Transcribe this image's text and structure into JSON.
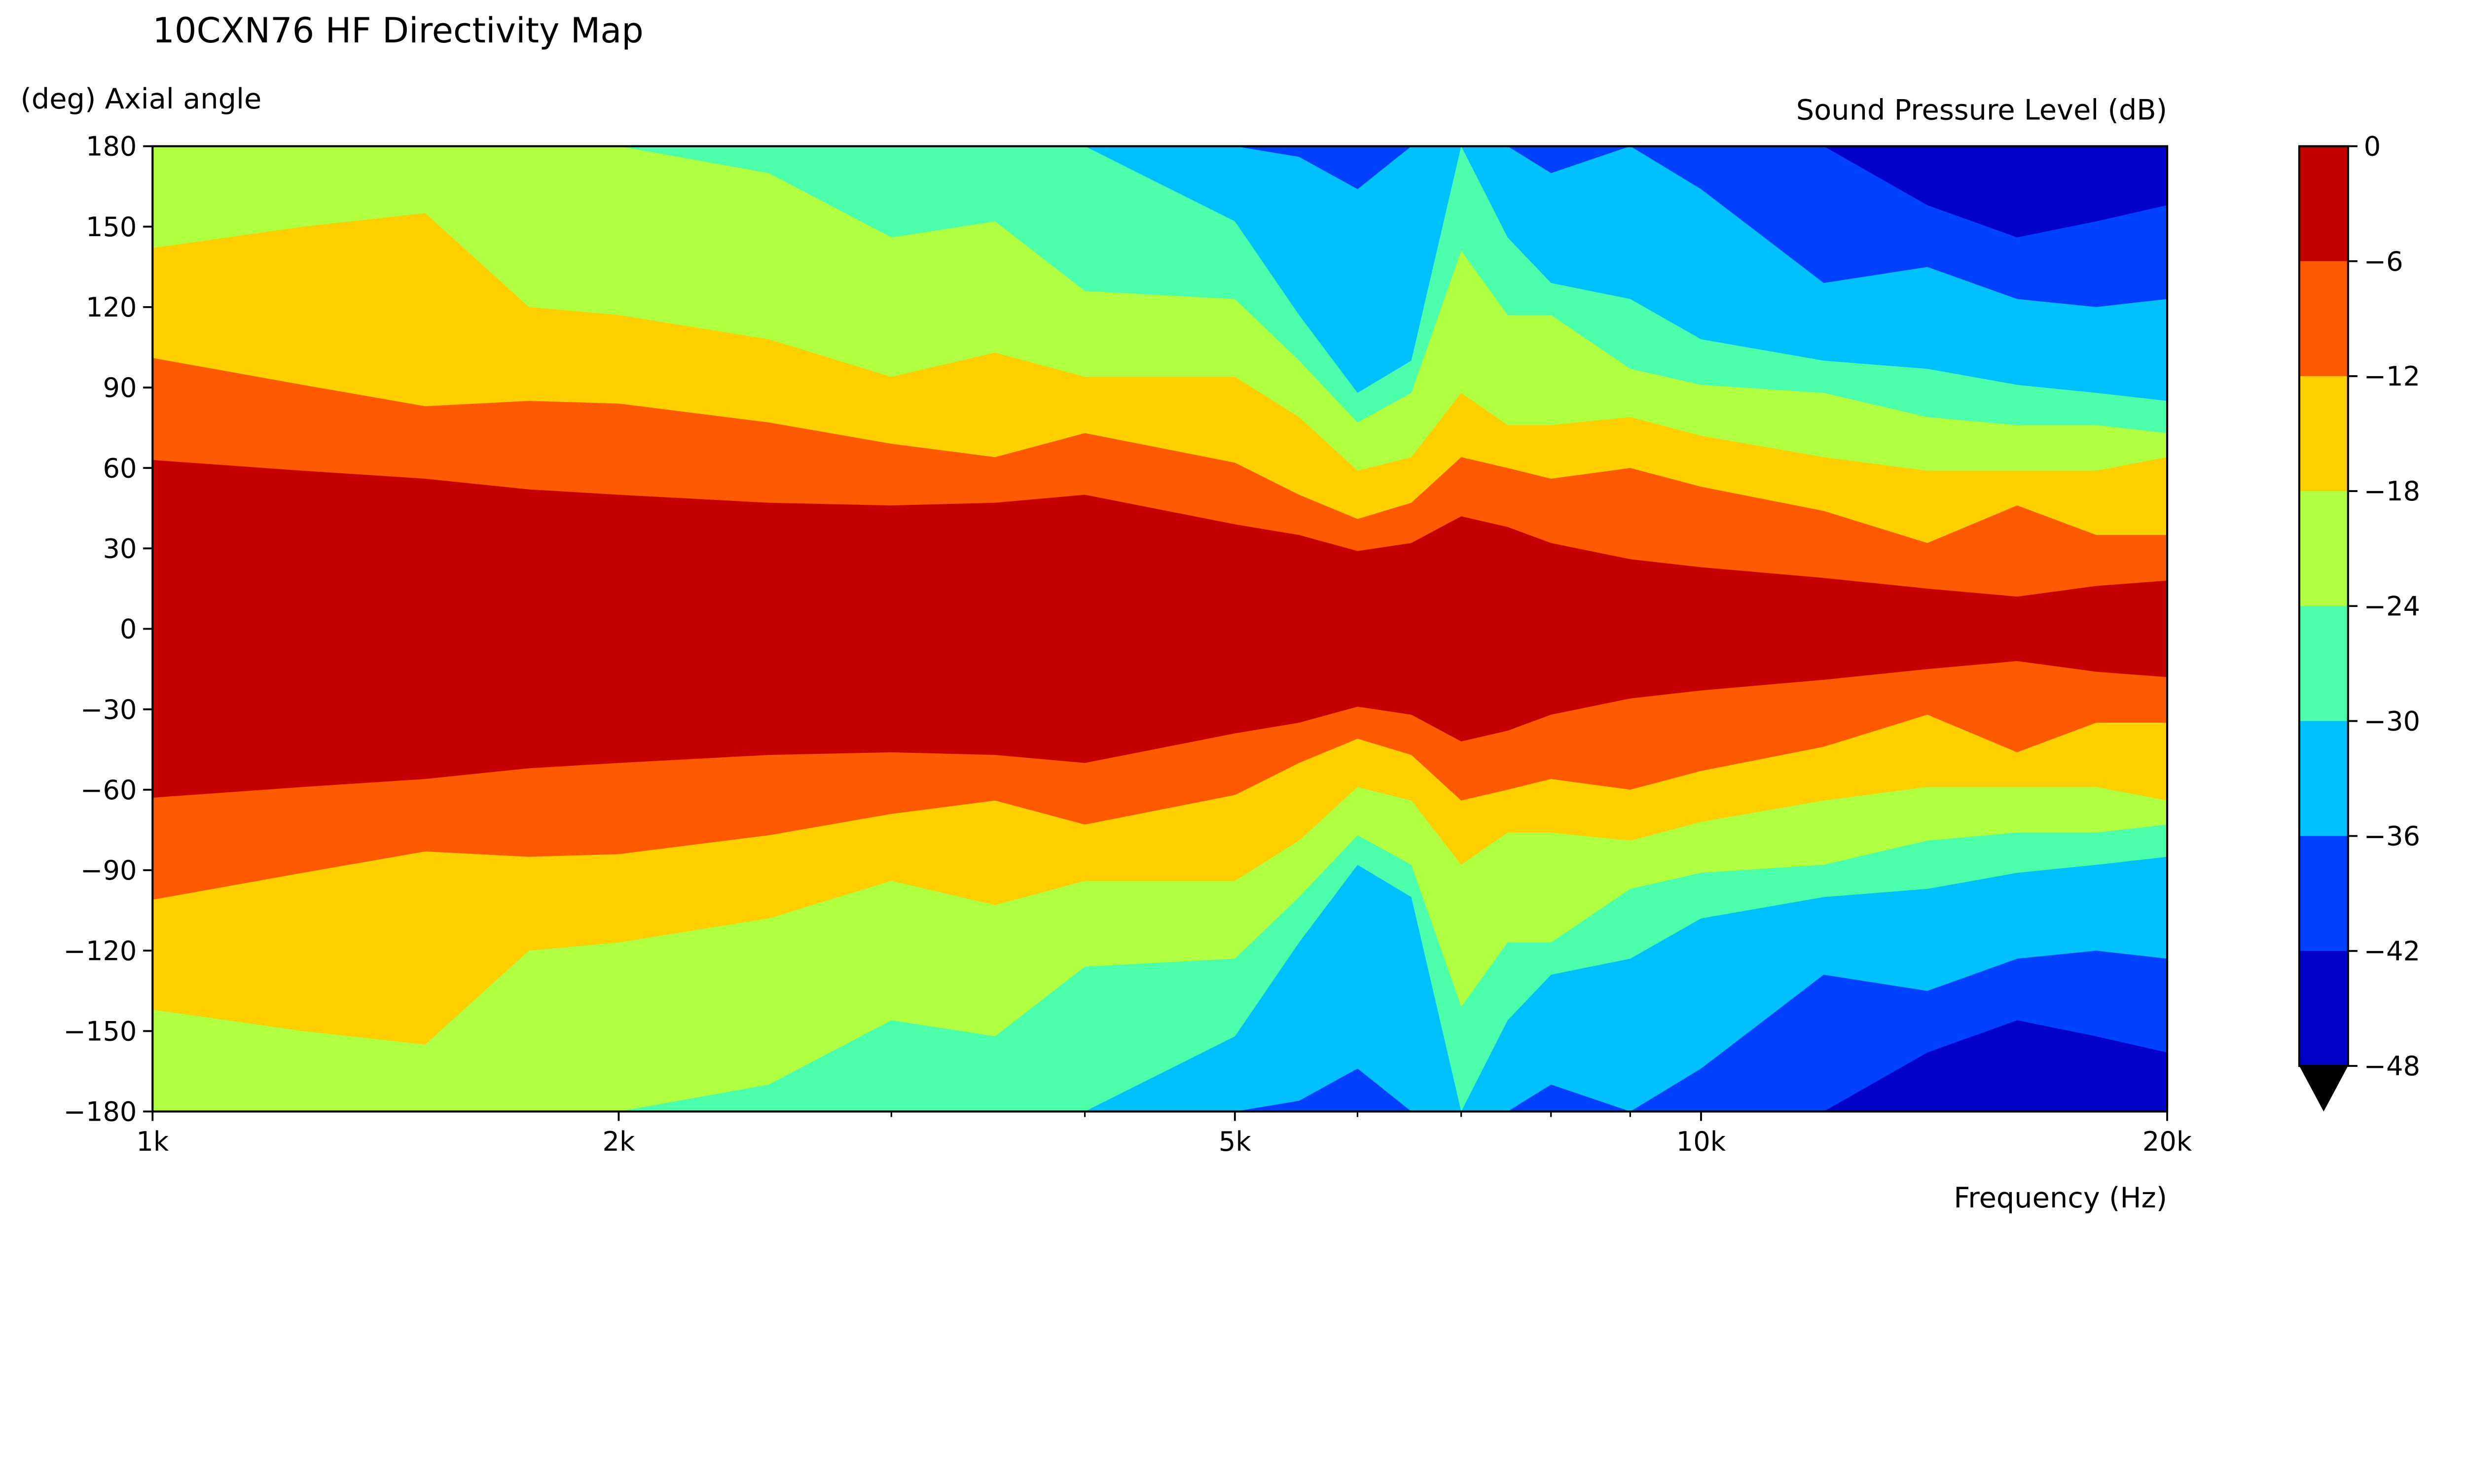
{
  "chart_data": {
    "type": "heatmap",
    "subtype": "filled-contour",
    "title": "10CXN76 HF Directivity Map",
    "xlabel": "Frequency (Hz)",
    "ylabel": "(deg) Axial angle",
    "colorbar_label": "Sound Pressure Level (dB)",
    "x_scale": "log",
    "xlim": [
      1000,
      20000
    ],
    "ylim": [
      -180,
      180
    ],
    "x_ticks": [
      {
        "value": 1000,
        "label": "1k"
      },
      {
        "value": 2000,
        "label": "2k"
      },
      {
        "value": 5000,
        "label": "5k"
      },
      {
        "value": 10000,
        "label": "10k"
      },
      {
        "value": 20000,
        "label": "20k"
      }
    ],
    "x_minor_ticks": [
      3000,
      4000,
      6000,
      7000,
      8000,
      9000
    ],
    "y_ticks": [
      180,
      150,
      120,
      90,
      60,
      30,
      0,
      -30,
      -60,
      -90,
      -120,
      -150,
      -180
    ],
    "levels": [
      0,
      -6,
      -12,
      -18,
      -24,
      -30,
      -36,
      -42,
      -48
    ],
    "colorbar_tick_labels": [
      "0",
      "−6",
      "−12",
      "−18",
      "−24",
      "−30",
      "−36",
      "−42",
      "−48"
    ],
    "colorbar_extend": "min",
    "band_colors": [
      "#c40000",
      "#ff5a00",
      "#ffd000",
      "#b0ff40",
      "#4cffaa",
      "#00c0ff",
      "#0040ff",
      "#0000c8"
    ],
    "grid": false,
    "symmetry": "mirrored about 0 deg",
    "frequencies": [
      1000,
      1250,
      1500,
      1750,
      2000,
      2500,
      3000,
      3500,
      4000,
      5000,
      5500,
      6000,
      6500,
      7000,
      7500,
      8000,
      9000,
      10000,
      12000,
      14000,
      16000,
      18000,
      20000
    ],
    "contour_angles_deg": {
      "-6": [
        63,
        59,
        56,
        52,
        50,
        47,
        46,
        47,
        50,
        39,
        35,
        29,
        32,
        42,
        38,
        32,
        26,
        23,
        19,
        15,
        12,
        16,
        18
      ],
      "-12": [
        101,
        91,
        83,
        85,
        84,
        77,
        69,
        64,
        73,
        62,
        50,
        41,
        47,
        64,
        60,
        56,
        60,
        53,
        44,
        32,
        46,
        35,
        35
      ],
      "-18": [
        142,
        150,
        155,
        120,
        117,
        108,
        94,
        103,
        94,
        94,
        79,
        59,
        64,
        88,
        76,
        76,
        79,
        72,
        64,
        59,
        59,
        59,
        64
      ],
      "-24": [
        180,
        180,
        180,
        180,
        180,
        170,
        146,
        152,
        126,
        123,
        100,
        77,
        88,
        141,
        117,
        117,
        97,
        91,
        88,
        79,
        76,
        76,
        73
      ],
      "-30": [
        180,
        180,
        180,
        180,
        180,
        180,
        180,
        180,
        180,
        152,
        117,
        88,
        100,
        180,
        146,
        129,
        123,
        108,
        100,
        97,
        91,
        88,
        85
      ],
      "-36": [
        180,
        180,
        180,
        180,
        180,
        180,
        180,
        180,
        180,
        180,
        176,
        164,
        180,
        180,
        180,
        170,
        180,
        164,
        129,
        135,
        123,
        120,
        123
      ],
      "-42": [
        180,
        180,
        180,
        180,
        180,
        180,
        180,
        180,
        180,
        180,
        180,
        180,
        180,
        180,
        180,
        180,
        180,
        180,
        180,
        158,
        146,
        152,
        158
      ]
    }
  }
}
